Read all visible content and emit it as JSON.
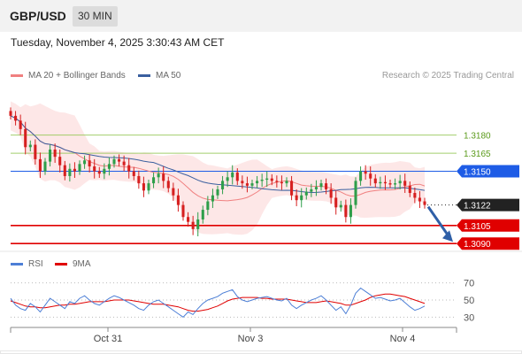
{
  "header": {
    "pair": "GBP/USD",
    "timeframe": "30 MIN"
  },
  "datetime": "Tuesday, November 4, 2025 3:30:43 AM CET",
  "legend": {
    "ma": "MA 20 + Bollinger Bands",
    "ma50": "MA 50",
    "rsi": "RSI",
    "rsi_ma": "9MA"
  },
  "copyright": "Research © 2025 Trading Central",
  "colors": {
    "ma20": "#f08080",
    "ma50": "#3a5f9f",
    "band_fill": "#fde3e3",
    "resistance": "#8bc34a",
    "pivot": "#1e5ce6",
    "support": "#e00000",
    "current": "#222222",
    "rsi": "#4d7fd6",
    "rsi_ma": "#e00000",
    "up": "#2e9e4a",
    "down": "#d61f1f"
  },
  "chart_data": [
    {
      "type": "candlestick",
      "x_ticks": [
        "Oct 31",
        "Nov 3",
        "Nov 4"
      ],
      "levels": [
        {
          "value": "1.3180",
          "kind": "resistance"
        },
        {
          "value": "1.3165",
          "kind": "resistance"
        },
        {
          "value": "1.3150",
          "kind": "pivot"
        },
        {
          "value": "1.3122",
          "kind": "current"
        },
        {
          "value": "1.3105",
          "kind": "support"
        },
        {
          "value": "1.3090",
          "kind": "support"
        }
      ],
      "ylim": [
        1.3085,
        1.3215
      ],
      "close": [
        1.3196,
        1.3192,
        1.3185,
        1.317,
        1.3172,
        1.316,
        1.315,
        1.3158,
        1.3168,
        1.3162,
        1.3155,
        1.3146,
        1.3152,
        1.315,
        1.3156,
        1.3159,
        1.3154,
        1.315,
        1.3148,
        1.3152,
        1.3156,
        1.316,
        1.3158,
        1.3155,
        1.315,
        1.3146,
        1.314,
        1.3134,
        1.314,
        1.3145,
        1.3148,
        1.3142,
        1.3136,
        1.313,
        1.3122,
        1.3112,
        1.3108,
        1.3102,
        1.311,
        1.3118,
        1.3125,
        1.313,
        1.3135,
        1.3142,
        1.3145,
        1.3149,
        1.3142,
        1.314,
        1.3138,
        1.314,
        1.3142,
        1.3143,
        1.3144,
        1.3142,
        1.3141,
        1.314,
        1.3142,
        1.313,
        1.3126,
        1.313,
        1.3133,
        1.3135,
        1.3137,
        1.314,
        1.3135,
        1.3128,
        1.312,
        1.3122,
        1.3112,
        1.3122,
        1.3142,
        1.315,
        1.3148,
        1.3144,
        1.314,
        1.3141,
        1.314,
        1.3139,
        1.314,
        1.3142,
        1.3138,
        1.3132,
        1.3128,
        1.3125,
        1.3122
      ]
    },
    {
      "type": "line",
      "y_ticks": [
        "70",
        "50",
        "30"
      ],
      "ylim": [
        20,
        80
      ],
      "series": [
        {
          "name": "RSI",
          "values": [
            52,
            44,
            40,
            38,
            46,
            42,
            36,
            44,
            52,
            48,
            44,
            40,
            48,
            46,
            52,
            55,
            50,
            46,
            44,
            48,
            52,
            55,
            53,
            50,
            47,
            44,
            40,
            38,
            44,
            48,
            50,
            46,
            42,
            38,
            34,
            30,
            36,
            33,
            40,
            46,
            50,
            52,
            54,
            58,
            60,
            62,
            54,
            50,
            48,
            50,
            52,
            53,
            54,
            52,
            50,
            49,
            52,
            44,
            40,
            44,
            47,
            50,
            52,
            55,
            50,
            44,
            38,
            42,
            34,
            44,
            58,
            64,
            60,
            56,
            52,
            53,
            51,
            49,
            50,
            52,
            47,
            42,
            38,
            40,
            43
          ]
        },
        {
          "name": "9MA",
          "values": [
            49,
            47,
            45,
            43,
            42,
            42,
            41,
            41,
            42,
            43,
            44,
            44,
            45,
            45,
            46,
            47,
            48,
            48,
            48,
            48,
            49,
            50,
            50,
            50,
            50,
            49,
            48,
            47,
            46,
            45,
            45,
            45,
            44,
            43,
            42,
            40,
            38,
            37,
            37,
            38,
            39,
            41,
            43,
            46,
            49,
            51,
            52,
            53,
            53,
            53,
            53,
            52,
            52,
            51,
            51,
            51,
            51,
            50,
            49,
            48,
            47,
            47,
            47,
            48,
            49,
            48,
            47,
            46,
            44,
            44,
            46,
            48,
            50,
            53,
            55,
            56,
            57,
            57,
            56,
            55,
            54,
            52,
            50,
            48,
            46
          ]
        }
      ]
    }
  ]
}
